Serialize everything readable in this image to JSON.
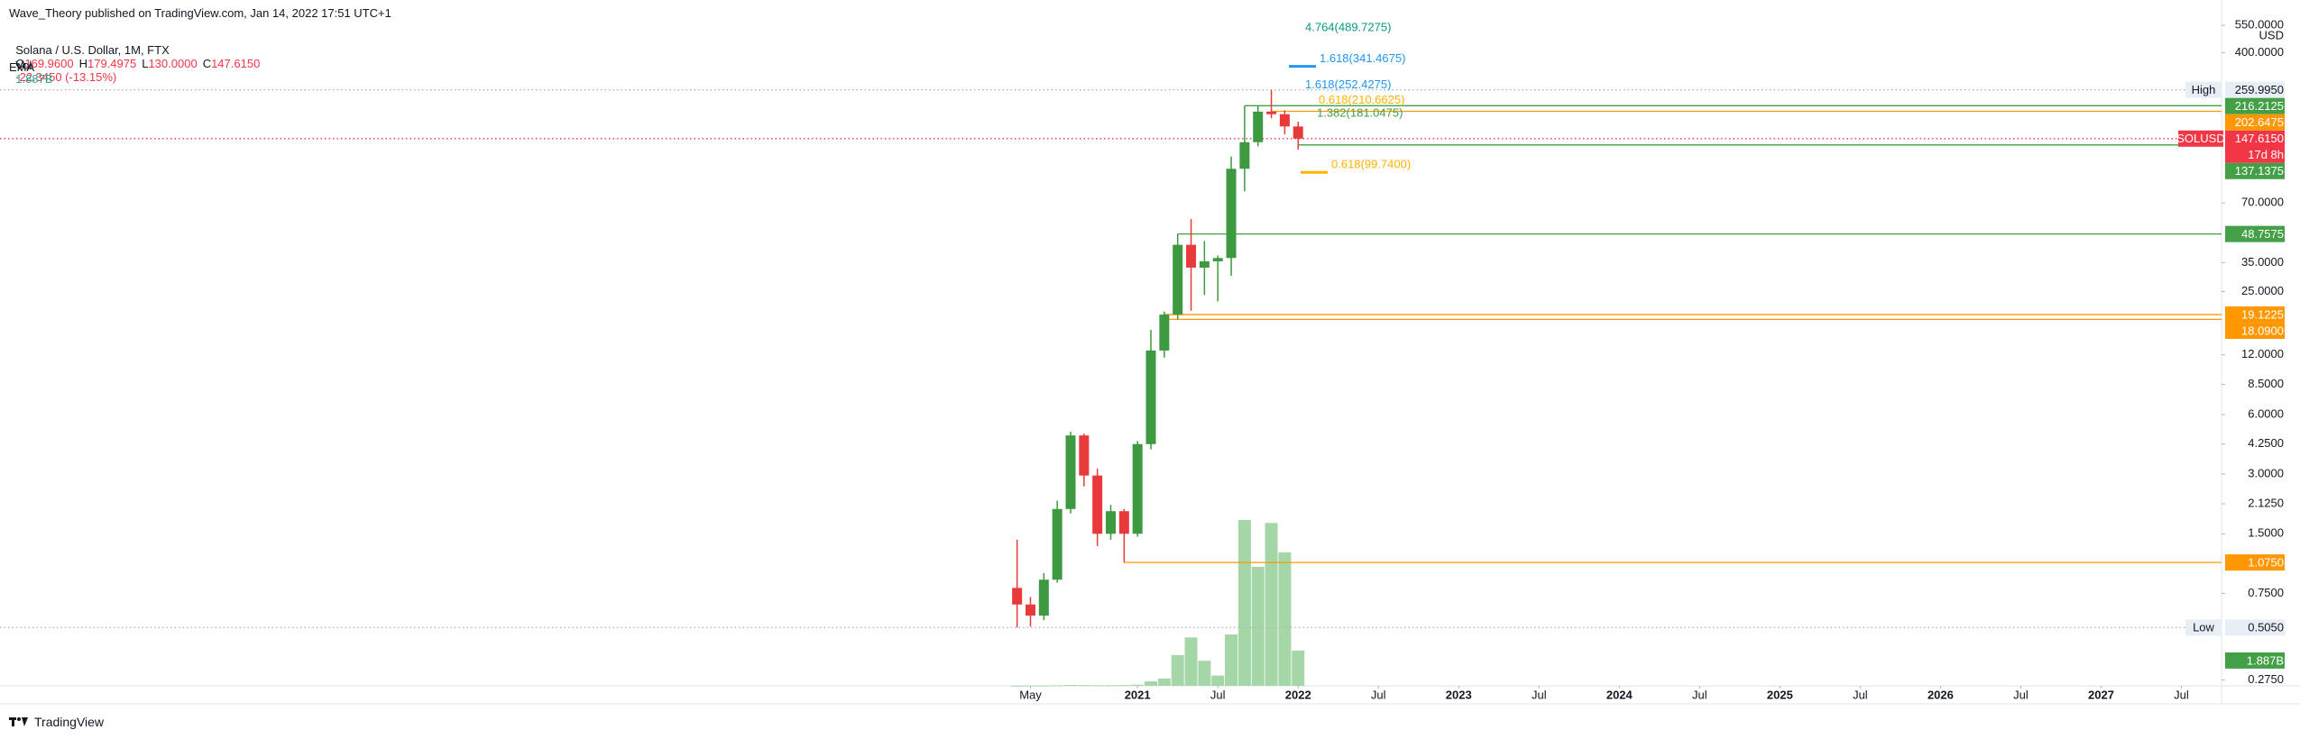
{
  "header": {
    "publisher": "Wave_Theory published on TradingView.com, Jan 14, 2022 17:51 UTC+1",
    "symbol": "Solana / U.S. Dollar, 1M, FTX",
    "ohlc": [
      {
        "key": "O",
        "text": "169.9600"
      },
      {
        "key": "H",
        "text": "179.4975"
      },
      {
        "key": "L",
        "text": "130.0000"
      },
      {
        "key": "C",
        "text": "147.6150"
      }
    ],
    "change": "-22.3450 (-13.15%)",
    "vol_key": "Vol",
    "vol_text": "1.887B",
    "indicator": "EMA"
  },
  "footer": "TradingView",
  "chart_data": {
    "type": "candlestick",
    "log_scale": true,
    "grid": false,
    "up_color": "#3d9a40",
    "down_color": "#e83a3a",
    "volume_color": "#a5d6a7",
    "x": [
      "2020-04",
      "2020-05",
      "2020-06",
      "2020-07",
      "2020-08",
      "2020-09",
      "2020-10",
      "2020-11",
      "2020-12",
      "2021-01",
      "2021-02",
      "2021-03",
      "2021-04",
      "2021-05",
      "2021-06",
      "2021-07",
      "2021-08",
      "2021-09",
      "2021-10",
      "2021-11",
      "2021-12",
      "2022-01"
    ],
    "open": [
      0.8,
      0.66,
      0.58,
      0.88,
      2.0,
      4.7,
      2.95,
      1.5,
      1.95,
      1.5,
      4.25,
      12.6,
      19.12,
      43,
      33,
      35.5,
      36.9,
      104,
      141.6,
      202,
      196,
      169.96
    ],
    "high": [
      1.4,
      0.72,
      0.95,
      2.2,
      4.9,
      4.8,
      3.2,
      2.1,
      2.0,
      4.4,
      16,
      19.8,
      48.76,
      58,
      45,
      38,
      120,
      216.21,
      218,
      259.995,
      205,
      179.4975
    ],
    "low": [
      0.505,
      0.51,
      0.55,
      0.85,
      1.9,
      2.6,
      1.3,
      1.4,
      1.075,
      1.45,
      4.0,
      11.6,
      18.09,
      20,
      24,
      22.3,
      30,
      80,
      135,
      187,
      155,
      130
    ],
    "close": [
      0.66,
      0.58,
      0.88,
      2.0,
      4.7,
      2.95,
      1.5,
      1.95,
      1.5,
      4.25,
      12.6,
      19.12,
      43,
      33,
      35.5,
      36.9,
      104,
      141.6,
      202,
      196,
      170,
      147.615
    ],
    "volume": [
      0.01,
      0.02,
      0.02,
      0.03,
      0.05,
      0.04,
      0.03,
      0.03,
      0.04,
      0.06,
      0.24,
      0.39,
      1.65,
      2.59,
      1.34,
      0.55,
      2.75,
      8.88,
      6.37,
      8.72,
      7.15,
      1.887
    ],
    "volume_tag": "1.887B",
    "ylim": [
      0.2566,
      664.8
    ],
    "yticks": [
      {
        "value": 550,
        "label": "550.0000"
      },
      {
        "value": 400,
        "label": "400.0000"
      },
      {
        "value": 70,
        "label": "70.0000"
      },
      {
        "value": 35,
        "label": "35.0000"
      },
      {
        "value": 25,
        "label": "25.0000"
      },
      {
        "value": 12,
        "label": "12.0000"
      },
      {
        "value": 8.5,
        "label": "8.5000"
      },
      {
        "value": 6,
        "label": "6.0000"
      },
      {
        "value": 4.25,
        "label": "4.2500"
      },
      {
        "value": 3,
        "label": "3.0000"
      },
      {
        "value": 2.125,
        "label": "2.1250"
      },
      {
        "value": 1.5,
        "label": "1.5000"
      },
      {
        "value": 0.75,
        "label": "0.7500"
      },
      {
        "value": 0.275,
        "label": "0.2750"
      }
    ],
    "price_unit": "USD",
    "xlim": [
      "2013-12",
      "2027-10"
    ],
    "xticks": [
      {
        "value": "2020-05",
        "label": "May"
      },
      {
        "value": "2021-01",
        "label": "2021"
      },
      {
        "value": "2021-07",
        "label": "Jul"
      },
      {
        "value": "2022-01",
        "label": "2022"
      },
      {
        "value": "2022-07",
        "label": "Jul"
      },
      {
        "value": "2023-01",
        "label": "2023"
      },
      {
        "value": "2023-07",
        "label": "Jul"
      },
      {
        "value": "2024-01",
        "label": "2024"
      },
      {
        "value": "2024-07",
        "label": "Jul"
      },
      {
        "value": "2025-01",
        "label": "2025"
      },
      {
        "value": "2025-07",
        "label": "Jul"
      },
      {
        "value": "2026-01",
        "label": "2026"
      },
      {
        "value": "2026-07",
        "label": "Jul"
      },
      {
        "value": "2027-01",
        "label": "2027"
      },
      {
        "value": "2027-07",
        "label": "Jul"
      }
    ],
    "levels": [
      {
        "value": 259.995,
        "label": "259.9950",
        "name": "High",
        "color": "#b2b5be",
        "tag_color": "#e9eef6",
        "text_color": "#131722",
        "dotted": true
      },
      {
        "value": 216.2125,
        "label": "216.2125",
        "color": "#43a047",
        "from": "2021-09"
      },
      {
        "value": 202.6475,
        "label": "202.6475",
        "color": "#ff9800",
        "from": "2021-11"
      },
      {
        "value": 147.615,
        "label": "147.6150",
        "color": "#f23645",
        "dotted": true,
        "symbol": "SOLUSD",
        "countdown": "17d 8h"
      },
      {
        "value": 137.1375,
        "label": "137.1375",
        "color": "#43a047",
        "from": "2022-01"
      },
      {
        "value": 48.7575,
        "label": "48.7575",
        "color": "#43a047",
        "from": "2021-04"
      },
      {
        "value": 19.1225,
        "label": "19.1225",
        "color": "#ff9800",
        "from": "2021-03"
      },
      {
        "value": 18.09,
        "label": "18.0900",
        "color": "#ff9800",
        "from": "2021-03"
      },
      {
        "value": 1.075,
        "label": "1.0750",
        "color": "#ff9800",
        "from": "2020-12"
      },
      {
        "value": 0.505,
        "label": "0.5050",
        "name": "Low",
        "color": "#b2b5be",
        "tag_color": "#e9eef6",
        "text_color": "#131722",
        "dotted": true
      }
    ],
    "fibs": [
      {
        "value": 489.7275,
        "label": "4.764(489.7275)",
        "color": "#089981"
      },
      {
        "value": 341.4675,
        "label": "1.618(341.4675)",
        "color": "#2196f3",
        "line": true
      },
      {
        "value": 252.4275,
        "label": "1.618(252.4275)",
        "color": "#2196f3"
      },
      {
        "value": 210.6625,
        "label": "0.618(210.6625)",
        "color": "#ffb300"
      },
      {
        "value": 181.0475,
        "label": "1.382(181.0475)",
        "color": "#43a047"
      },
      {
        "value": 99.74,
        "label": "0.618(99.7400)",
        "color": "#ffb300",
        "line": true
      }
    ]
  }
}
